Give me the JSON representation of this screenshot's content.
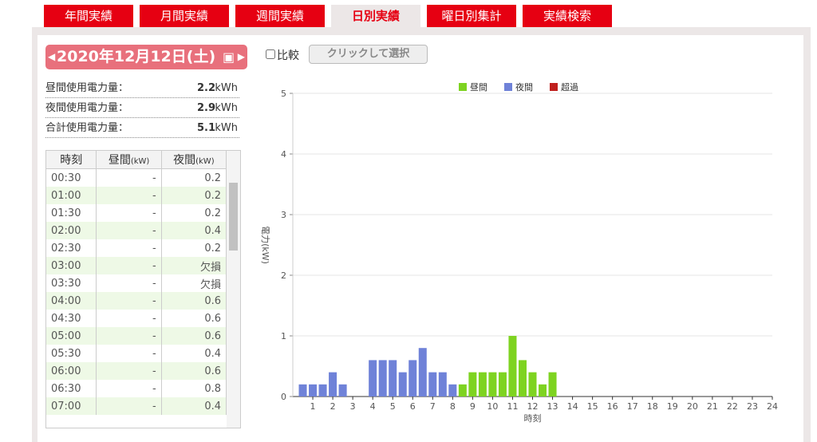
{
  "tabs": {
    "items": [
      "年間実績",
      "月間実績",
      "週間実績",
      "日別実績",
      "曜日別集計",
      "実績検索"
    ],
    "active": 3
  },
  "date": "2020年12月12日(土)",
  "compare": {
    "label": "比較",
    "button": "クリックして選択"
  },
  "summary": [
    {
      "label": "昼間使用電力量：",
      "value": 2.2,
      "unit": "kWh"
    },
    {
      "label": "夜間使用電力量：",
      "value": 2.9,
      "unit": "kWh"
    },
    {
      "label": "合計使用電力量：",
      "value": 5.1,
      "unit": "kWh"
    }
  ],
  "table": {
    "header": [
      {
        "label": "時刻"
      },
      {
        "label": "昼間",
        "unit": "(kW)"
      },
      {
        "label": "夜間",
        "unit": "(kW)"
      }
    ],
    "rows": [
      [
        "00:30",
        "-",
        0.2
      ],
      [
        "01:00",
        "-",
        0.2
      ],
      [
        "01:30",
        "-",
        0.2
      ],
      [
        "02:00",
        "-",
        0.4
      ],
      [
        "02:30",
        "-",
        0.2
      ],
      [
        "03:00",
        "-",
        "欠損"
      ],
      [
        "03:30",
        "-",
        "欠損"
      ],
      [
        "04:00",
        "-",
        0.6
      ],
      [
        "04:30",
        "-",
        0.6
      ],
      [
        "05:00",
        "-",
        0.6
      ],
      [
        "05:30",
        "-",
        0.4
      ],
      [
        "06:00",
        "-",
        0.6
      ],
      [
        "06:30",
        "-",
        0.8
      ],
      [
        "07:00",
        "-",
        0.4
      ]
    ]
  },
  "chart_data": {
    "type": "bar",
    "ylabel": "電力(kW)",
    "xlabel": "時刻",
    "xlim": [
      0,
      24
    ],
    "xticks": [
      1,
      2,
      3,
      4,
      5,
      6,
      7,
      8,
      9,
      10,
      11,
      12,
      13,
      14,
      15,
      16,
      17,
      18,
      19,
      20,
      21,
      22,
      23,
      24
    ],
    "ylim": [
      0,
      5
    ],
    "yticks": [
      0,
      1,
      2,
      3,
      4,
      5
    ],
    "grid": true,
    "legend": "top",
    "series": [
      {
        "name": "昼間",
        "color": "#7ed321",
        "x": [
          8.5,
          9,
          9.5,
          10,
          10.5,
          11,
          11.5,
          12,
          12.5,
          13
        ],
        "values": [
          0.2,
          0.4,
          0.4,
          0.4,
          0.4,
          1.0,
          0.6,
          0.4,
          0.2,
          0.4
        ]
      },
      {
        "name": "夜間",
        "color": "#6f82d8",
        "x": [
          0.5,
          1,
          1.5,
          2,
          2.5,
          3,
          3.5,
          4,
          4.5,
          5,
          5.5,
          6,
          6.5,
          7,
          7.5,
          8
        ],
        "values": [
          0.2,
          0.2,
          0.2,
          0.4,
          0.2,
          null,
          null,
          0.6,
          0.6,
          0.6,
          0.4,
          0.6,
          0.8,
          0.4,
          0.4,
          0.2
        ]
      },
      {
        "name": "超過",
        "color": "#c0201e",
        "x": [],
        "values": []
      }
    ]
  }
}
